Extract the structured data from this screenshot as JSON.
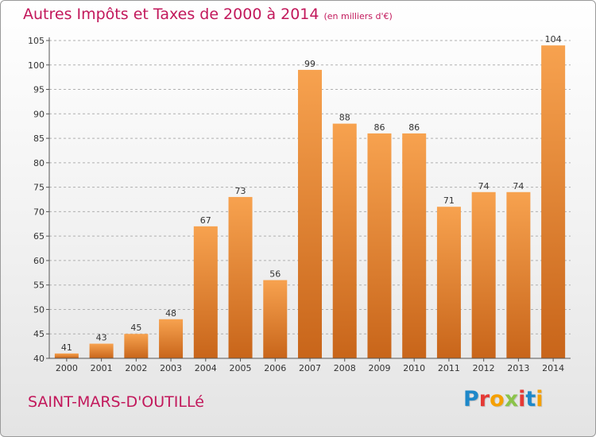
{
  "header": {
    "title": "Autres Impôts et Taxes de 2000 à 2014",
    "subtitle": "(en milliers d'€)"
  },
  "footer": {
    "town": "SAINT-MARS-D'OUTILLé",
    "logo_letters": [
      "P",
      "r",
      "o",
      "x",
      "i",
      "t",
      "i"
    ],
    "logo_colors": [
      "#1e88c9",
      "#e53935",
      "#f5a000",
      "#8bc34a",
      "#e53935",
      "#1e88c9",
      "#f5a000"
    ]
  },
  "colors": {
    "bar_top": "#f7a24f",
    "bar_bottom": "#c8651a",
    "title": "#c2185b",
    "grid": "#b0b0b0"
  },
  "chart_data": {
    "type": "bar",
    "categories": [
      "2000",
      "2001",
      "2002",
      "2003",
      "2004",
      "2005",
      "2006",
      "2007",
      "2008",
      "2009",
      "2010",
      "2011",
      "2012",
      "2013",
      "2014"
    ],
    "values": [
      41,
      43,
      45,
      48,
      67,
      73,
      56,
      99,
      88,
      86,
      86,
      71,
      74,
      74,
      104
    ],
    "title": "Autres Impôts et Taxes de 2000 à 2014",
    "xlabel": "",
    "ylabel": "",
    "ylim": [
      40,
      105
    ],
    "yticks": [
      40,
      45,
      50,
      55,
      60,
      65,
      70,
      75,
      80,
      85,
      90,
      95,
      100,
      105
    ],
    "grid": true,
    "grid_style": "dashed-horizontal"
  }
}
